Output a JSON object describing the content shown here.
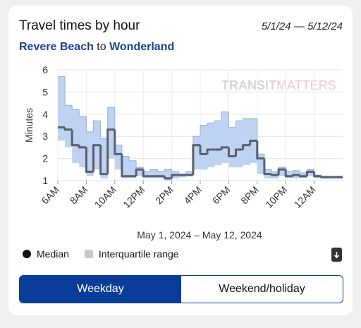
{
  "header": {
    "title": "Travel times by hour",
    "date_range": "5/1/24 — 5/12/24",
    "from": "Revere Beach",
    "connector": "to",
    "to": "Wonderland"
  },
  "chart_data": {
    "type": "step-band",
    "y_label": "Minutes",
    "x_label": "May 1, 2024 – May 12, 2024",
    "watermark": {
      "bold": "TRANSIT",
      "light": "MATTERS"
    },
    "x": [
      6,
      6.5,
      7,
      7.5,
      8,
      8.5,
      9,
      9.5,
      10,
      10.5,
      11,
      11.5,
      12,
      12.5,
      13,
      13.5,
      14,
      14.5,
      15,
      15.5,
      16,
      16.5,
      17,
      17.5,
      18,
      18.5,
      19,
      19.5,
      20,
      20.5,
      21,
      21.5,
      22,
      22.5,
      23,
      23.5,
      24,
      24.5,
      25,
      25.5
    ],
    "xlim": [
      6,
      26
    ],
    "xticks": [
      {
        "value": 6,
        "label": "6AM"
      },
      {
        "value": 8,
        "label": "8AM"
      },
      {
        "value": 10,
        "label": "10AM"
      },
      {
        "value": 12,
        "label": "12PM"
      },
      {
        "value": 14,
        "label": "2PM"
      },
      {
        "value": 16,
        "label": "4PM"
      },
      {
        "value": 18,
        "label": "6PM"
      },
      {
        "value": 20,
        "label": "8PM"
      },
      {
        "value": 22,
        "label": "10PM"
      },
      {
        "value": 24,
        "label": "12AM"
      }
    ],
    "ylim": [
      1,
      6
    ],
    "yticks": [
      1,
      2,
      3,
      4,
      5,
      6
    ],
    "grid": true,
    "series": [
      {
        "name": "Median",
        "color": "#58606b",
        "values": [
          3.4,
          3.3,
          2.6,
          2.5,
          1.4,
          2.6,
          1.3,
          3.3,
          2.2,
          1.2,
          1.2,
          1.5,
          1.2,
          1.2,
          1.2,
          1.1,
          1.25,
          1.25,
          1.25,
          2.6,
          2.2,
          2.4,
          2.4,
          2.5,
          2.1,
          2.4,
          2.6,
          2.8,
          2.0,
          1.3,
          1.25,
          1.5,
          1.2,
          1.25,
          1.2,
          1.4,
          1.2,
          1.15,
          1.15,
          1.15
        ]
      }
    ],
    "band": {
      "name": "Interquartile range",
      "color": "#bfd2f2",
      "edge_color": "#8eb0e6",
      "lower": [
        2.8,
        2.5,
        1.8,
        1.6,
        1.2,
        1.5,
        1.1,
        2.0,
        1.5,
        1.1,
        1.1,
        1.2,
        1.1,
        1.1,
        1.1,
        1.0,
        1.1,
        1.15,
        1.2,
        1.5,
        1.5,
        1.6,
        1.7,
        1.8,
        1.6,
        1.6,
        1.7,
        1.8,
        1.3,
        1.1,
        1.1,
        1.2,
        1.1,
        1.1,
        1.1,
        1.2,
        1.1,
        1.1,
        1.1,
        1.1
      ],
      "upper": [
        5.7,
        4.4,
        4.2,
        3.9,
        3.2,
        3.7,
        2.9,
        4.3,
        2.6,
        2.1,
        1.9,
        1.6,
        1.4,
        1.5,
        1.4,
        1.5,
        1.4,
        1.3,
        1.4,
        3.0,
        3.5,
        3.6,
        3.7,
        4.1,
        3.4,
        3.7,
        3.8,
        3.8,
        2.2,
        1.5,
        1.4,
        1.6,
        1.4,
        1.45,
        1.35,
        1.5,
        1.25,
        1.2,
        1.2,
        1.2
      ]
    }
  },
  "toggle": {
    "options": [
      "Weekday",
      "Weekend/holiday"
    ],
    "selected": 0
  }
}
